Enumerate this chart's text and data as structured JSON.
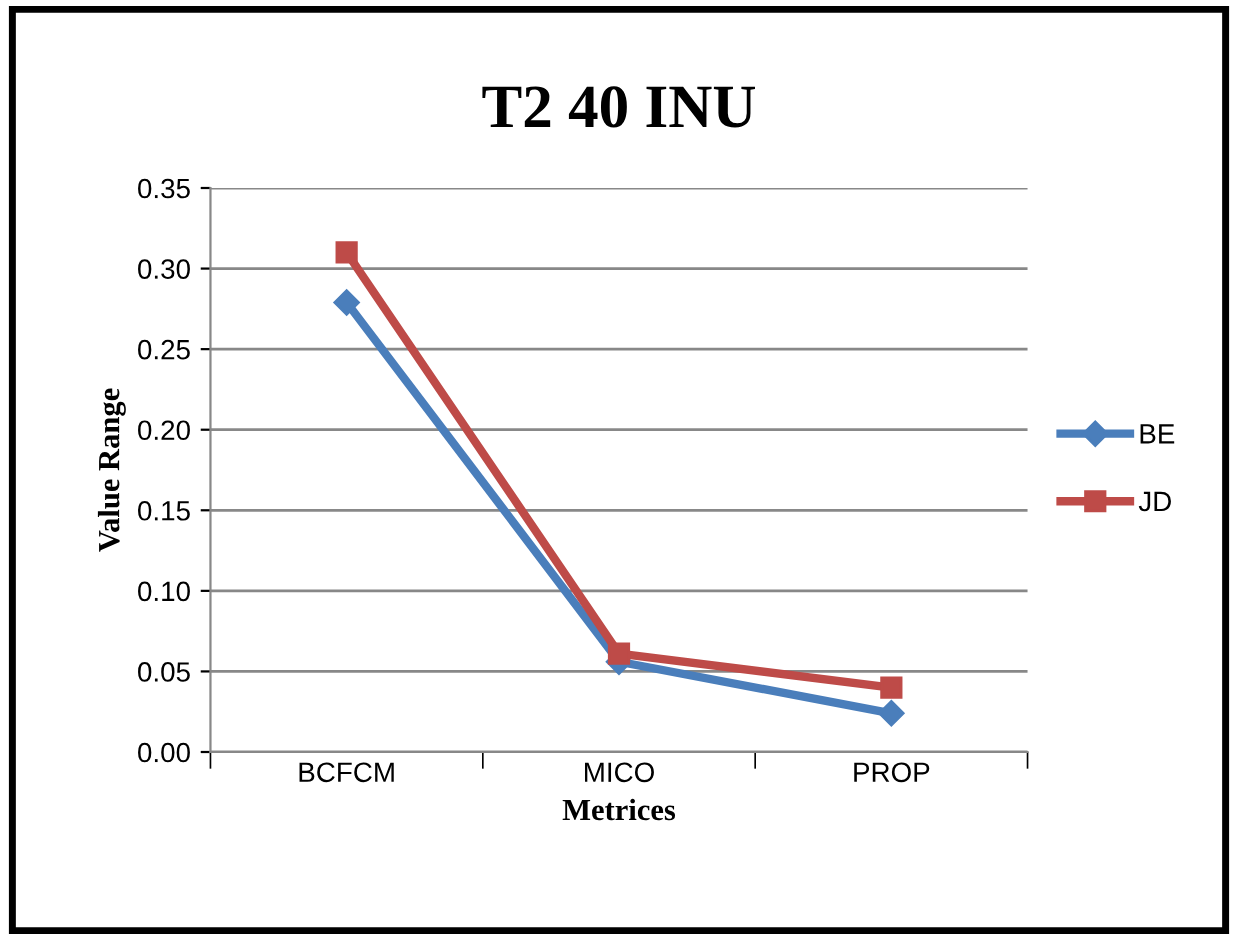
{
  "chart_data": {
    "type": "line",
    "title": "T2 40 INU",
    "xlabel": "Metrices",
    "ylabel": "Value Range",
    "categories": [
      "BCFCM",
      "MICO",
      "PROP"
    ],
    "series": [
      {
        "name": "BE",
        "color": "#4a7ebb",
        "marker": "diamond",
        "values": [
          0.279,
          0.056,
          0.024
        ]
      },
      {
        "name": "JD",
        "color": "#be4b48",
        "marker": "square",
        "values": [
          0.31,
          0.061,
          0.04
        ]
      }
    ],
    "ylim": [
      0,
      0.35
    ],
    "yticks": [
      {
        "value": 0,
        "label": "0.00"
      },
      {
        "value": 0.05,
        "label": "0.05"
      },
      {
        "value": 0.1,
        "label": "0.10"
      },
      {
        "value": 0.15,
        "label": "0.15"
      },
      {
        "value": 0.2,
        "label": "0.20"
      },
      {
        "value": 0.25,
        "label": "0.25"
      },
      {
        "value": 0.3,
        "label": "0.30"
      },
      {
        "value": 0.35,
        "label": "0.35"
      }
    ],
    "grid": "y",
    "legend": "right"
  }
}
